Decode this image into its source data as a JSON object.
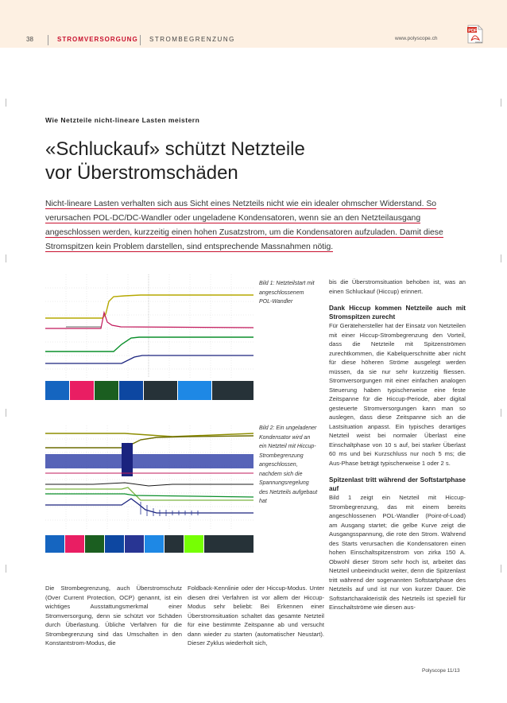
{
  "header": {
    "page_number": "38",
    "section": "STROMVERSORGUNG",
    "subsection": "STROMBEGRENZUNG",
    "url": "www.polyscope.ch",
    "pdf_label": "PDF",
    "pdf_sub": "Adobe"
  },
  "article": {
    "kicker": "Wie Netzteile nicht-lineare Lasten meistern",
    "title_line1": "«Schluckauf» schützt Netzteile",
    "title_line2": "vor Überstromschäden",
    "lead": "Nicht-lineare Lasten verhalten sich aus Sicht eines Netzteils nicht wie ein idealer ohmscher Widerstand. So verursachen POL-DC/DC-Wandler oder ungeladene Kondensatoren, wenn sie an den Netzteilausgang angeschlossen werden, kurzzeitig einen hohen Zusatzstrom, um die Kondensatoren aufzuladen. Damit diese Stromspitzen kein Problem darstellen, sind entsprechende Massnahmen nötig."
  },
  "figures": {
    "fig1_caption": "Bild 1: Netzteilstart mit angeschlossenem POL-Wandler",
    "fig2_caption": "Bild 2: Ein ungeladener Kondensator wird an ein Netzteil mit Hiccup-Strombegrenzung angeschlossen, nachdem sich die Spannungsregelung des Netzteils aufgebaut hat"
  },
  "body": {
    "col1": "Die Strombegrenzung, auch Überstromschutz (Over Current Protection, OCP) genannt, ist ein wichtiges Ausstattungsmerkmal einer Stromversorgung, denn sie schützt vor Schäden durch Überlastung. Übliche Verfahren für die Strombegrenzung sind das Umschalten in den Konstantstrom-Modus, die",
    "col2": "Foldback-Kennlinie oder der Hiccup-Modus. Unter diesen drei Verfahren ist vor allem der Hiccup-Modus sehr beliebt: Bei Erkennen einer Überstromsituation schaltet das gesamte Netzteil für eine bestimmte Zeitspanne ab und versucht dann wieder zu starten (automatischer Neustart). Dieser Zyklus wiederholt sich,",
    "col3_p1": "bis die Überstromsituation behoben ist, was an einen Schluckauf (Hiccup) erinnert.",
    "col3_h1": "Dank Hiccup kommen Netzteile auch mit Stromspitzen zurecht",
    "col3_p2": "Für Gerätehersteller hat der Einsatz von Netzteilen mit einer Hiccup-Strombegrenzung den Vorteil, dass die Netzteile mit Spitzenströmen zurechtkommen, die Kabelquerschnitte aber nicht für diese höheren Ströme ausgelegt werden müssen, da sie nur sehr kurzzeitig fliessen. Stromversorgungen mit einer einfachen analogen Steuerung haben typischerweise eine feste Zeitspanne für die Hiccup-Periode, aber digital gesteuerte Stromversorgungen kann man so auslegen, dass diese Zeitspanne sich an die Lastsituation anpasst. Ein typisches derartiges Netzteil weist bei normaler Überlast eine Einschaltphase von 10 s auf, bei starker Überlast 60 ms und bei Kurzschluss nur noch 5 ms; die Aus-Phase beträgt typischerweise 1 oder 2 s.",
    "col3_h2": "Spitzenlast tritt während der Softstartphase auf",
    "col3_p3": "Bild 1 zeigt ein Netzteil mit Hiccup-Strombegrenzung, das mit einem bereits angeschlossenen POL-Wandler (Point-of-Load) am Ausgang startet; die gelbe Kurve zeigt die Ausgangsspannung, die rote den Strom. Während des Starts verursachen die Kondensatoren einen hohen Einschaltspitzenstrom von zirka 150 A. Obwohl dieser Strom sehr hoch ist, arbeitet das Netzteil unbeeindruckt weiter, denn die Spitzenlast tritt während der sogenannten Softstartphase des Netzteils auf und ist nur von kurzer Dauer. Die Softstartcharakteristik des Netzteils ist speziell für Einschaltströme wie diesen aus-"
  },
  "footer": {
    "text": "Polyscope 11/13"
  }
}
